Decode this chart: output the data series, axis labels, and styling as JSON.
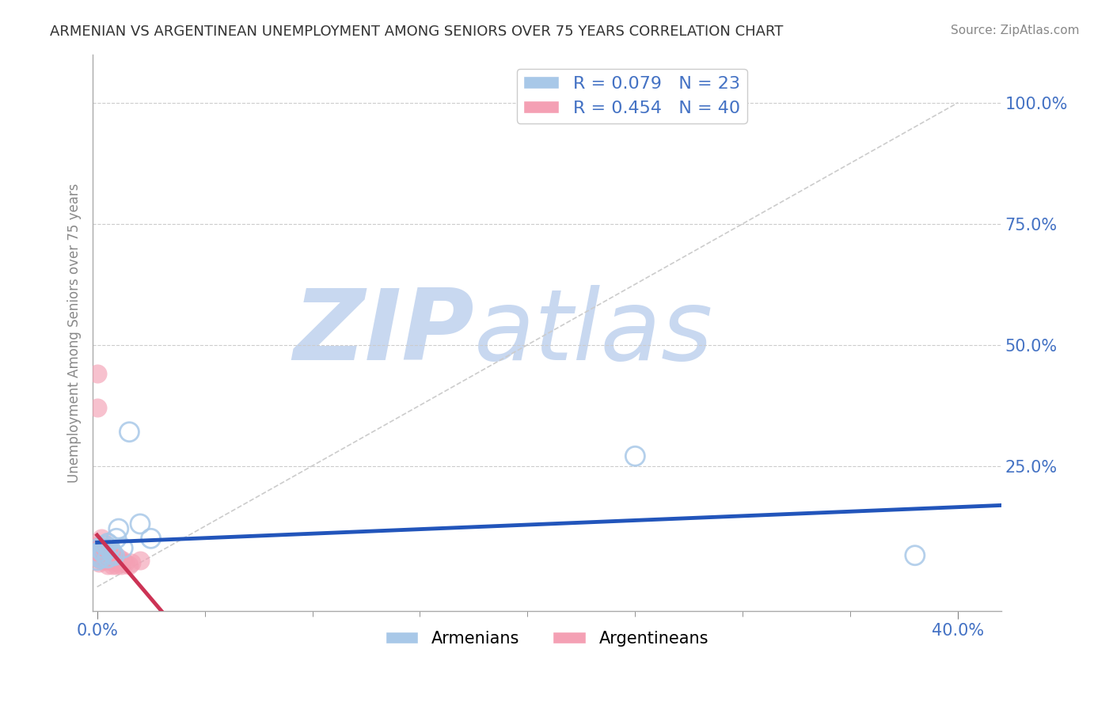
{
  "title": "ARMENIAN VS ARGENTINEAN UNEMPLOYMENT AMONG SENIORS OVER 75 YEARS CORRELATION CHART",
  "source": "Source: ZipAtlas.com",
  "xlim": [
    -0.002,
    0.42
  ],
  "ylim": [
    -0.05,
    1.1
  ],
  "armenians_R": 0.079,
  "armenians_N": 23,
  "argentineans_R": 0.454,
  "argentineans_N": 40,
  "armenians_color": "#A8C8E8",
  "argentineans_color": "#F4A0B4",
  "armenians_line_color": "#2255BB",
  "argentineans_line_color": "#CC3355",
  "watermark_zip": "ZIP",
  "watermark_atlas": "atlas",
  "watermark_color": "#C8D8F0",
  "armenians_x": [
    0.0,
    0.0,
    0.001,
    0.001,
    0.001,
    0.002,
    0.002,
    0.003,
    0.003,
    0.004,
    0.005,
    0.005,
    0.006,
    0.007,
    0.008,
    0.009,
    0.01,
    0.012,
    0.015,
    0.02,
    0.025,
    0.25,
    0.38
  ],
  "armenians_y": [
    0.055,
    0.07,
    0.06,
    0.065,
    0.08,
    0.06,
    0.075,
    0.07,
    0.08,
    0.085,
    0.09,
    0.06,
    0.08,
    0.07,
    0.065,
    0.1,
    0.12,
    0.08,
    0.32,
    0.13,
    0.1,
    0.27,
    0.065
  ],
  "argentineans_x": [
    0.0,
    0.0,
    0.0,
    0.0,
    0.0,
    0.0,
    0.001,
    0.001,
    0.001,
    0.001,
    0.002,
    0.002,
    0.002,
    0.002,
    0.003,
    0.003,
    0.003,
    0.004,
    0.004,
    0.004,
    0.005,
    0.005,
    0.005,
    0.006,
    0.006,
    0.007,
    0.007,
    0.007,
    0.008,
    0.008,
    0.009,
    0.009,
    0.01,
    0.01,
    0.011,
    0.012,
    0.013,
    0.015,
    0.016,
    0.02
  ],
  "argentineans_y": [
    0.06,
    0.065,
    0.075,
    0.085,
    0.37,
    0.44,
    0.05,
    0.06,
    0.065,
    0.08,
    0.055,
    0.065,
    0.075,
    0.1,
    0.055,
    0.065,
    0.075,
    0.055,
    0.065,
    0.075,
    0.045,
    0.055,
    0.065,
    0.055,
    0.065,
    0.045,
    0.055,
    0.065,
    0.055,
    0.065,
    0.045,
    0.055,
    0.05,
    0.06,
    0.045,
    0.055,
    0.05,
    0.045,
    0.05,
    0.055
  ],
  "yticks": [
    0.0,
    0.25,
    0.5,
    0.75,
    1.0
  ],
  "xticks_major": [
    0.0,
    0.4
  ],
  "xticks_minor": [
    0.05,
    0.1,
    0.15,
    0.2,
    0.25,
    0.3,
    0.35
  ],
  "ylabel": "Unemployment Among Seniors over 75 years"
}
